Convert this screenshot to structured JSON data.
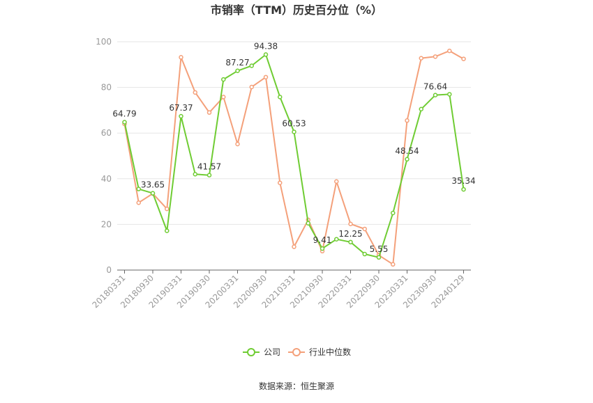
{
  "chart_data": {
    "type": "line",
    "title": "市销率（TTM）历史百分位（%）",
    "xlabel": "",
    "ylabel": "",
    "ylim": [
      0,
      100
    ],
    "yticks": [
      0,
      20,
      40,
      60,
      80,
      100
    ],
    "x_tick_labels": [
      "20180331",
      "20180930",
      "20190331",
      "20190930",
      "20200331",
      "20200930",
      "20210331",
      "20210930",
      "20220331",
      "20220930",
      "20230331",
      "20230930",
      "20240129"
    ],
    "grid": "horizontal",
    "legend": "bottom-center",
    "series": [
      {
        "name": "公司",
        "color": "#6fcc33",
        "values": [
          64.79,
          35.5,
          33.65,
          17.2,
          67.37,
          42.0,
          41.57,
          83.5,
          87.27,
          89.5,
          94.38,
          75.8,
          60.53,
          20.5,
          9.41,
          13.5,
          12.25,
          7.0,
          5.55,
          25.0,
          48.54,
          70.5,
          76.64,
          77.0,
          35.34
        ]
      },
      {
        "name": "行业中位数",
        "color": "#f4a07a",
        "values": [
          64.0,
          29.5,
          33.5,
          26.8,
          93.2,
          77.8,
          69.0,
          75.8,
          55.2,
          80.2,
          84.5,
          38.2,
          10.2,
          22.0,
          8.3,
          38.8,
          20.2,
          18.0,
          6.5,
          2.5,
          65.5,
          92.8,
          93.5,
          96.0,
          92.5
        ]
      }
    ],
    "data_labels": [
      {
        "index": 0,
        "text": "64.79"
      },
      {
        "index": 2,
        "text": "33.65"
      },
      {
        "index": 4,
        "text": "67.37"
      },
      {
        "index": 6,
        "text": "41.57"
      },
      {
        "index": 8,
        "text": "87.27"
      },
      {
        "index": 10,
        "text": "94.38"
      },
      {
        "index": 12,
        "text": "60.53"
      },
      {
        "index": 14,
        "text": "9.41"
      },
      {
        "index": 16,
        "text": "12.25"
      },
      {
        "index": 18,
        "text": "5.55"
      },
      {
        "index": 20,
        "text": "48.54"
      },
      {
        "index": 22,
        "text": "76.64"
      },
      {
        "index": 24,
        "text": "35.34"
      }
    ],
    "source": "数据来源：恒生聚源"
  }
}
